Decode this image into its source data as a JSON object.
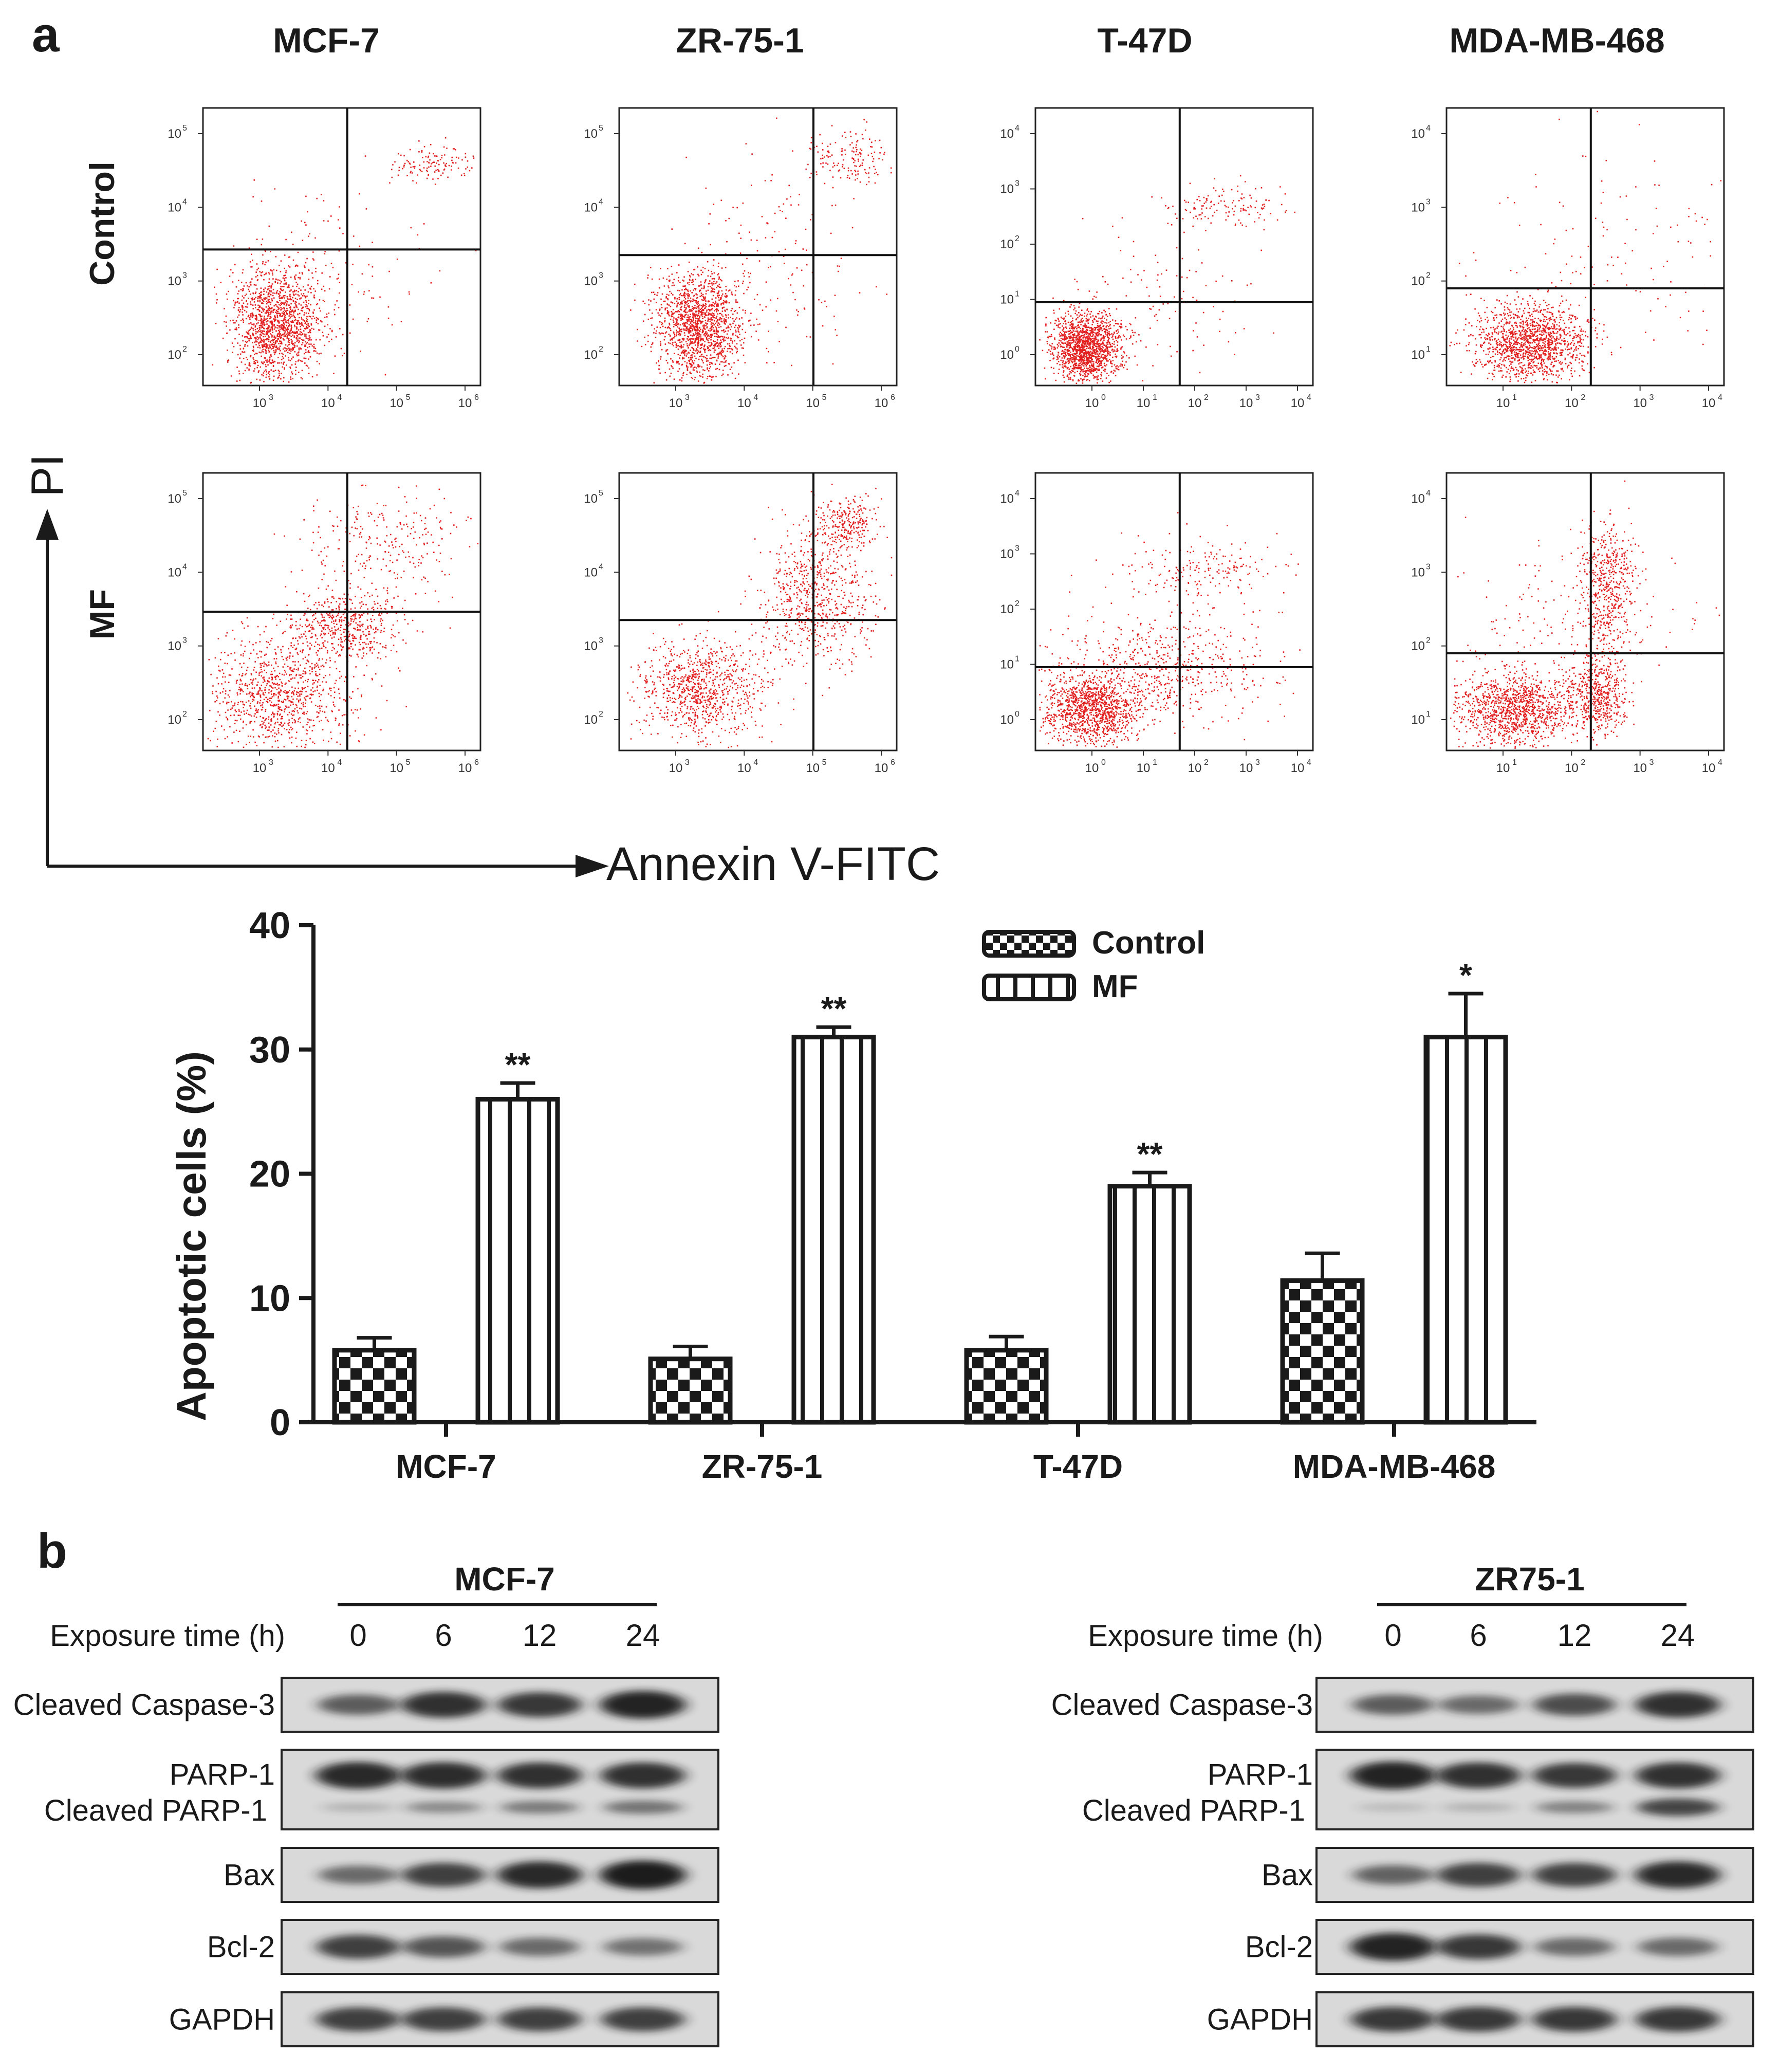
{
  "panel_a": {
    "label": "a",
    "cell_lines": [
      "MCF-7",
      "ZR-75-1",
      "T-47D",
      "MDA-MB-468"
    ],
    "conditions": [
      "Control",
      "MF"
    ],
    "y_axis_label": "PI",
    "x_axis_label": "Annexin V-FITC",
    "scatter_plots": [
      {
        "cell_line": "MCF-7",
        "ticks_x": [
          "10",
          "10",
          "10",
          "10"
        ],
        "tick_exponents_x": [
          "3",
          "4",
          "5",
          "6"
        ],
        "ticks_y": [
          "10",
          "10",
          "10",
          "10"
        ],
        "tick_exponents_y": [
          "2",
          "3",
          "4",
          "5"
        ]
      },
      {
        "cell_line": "ZR-75-1",
        "ticks_x": [
          "10",
          "10",
          "10",
          "10"
        ],
        "tick_exponents_x": [
          "3",
          "4",
          "5",
          "6"
        ],
        "ticks_y": [
          "10",
          "10",
          "10",
          "10"
        ],
        "tick_exponents_y": [
          "2",
          "3",
          "4",
          "5"
        ]
      },
      {
        "cell_line": "T-47D",
        "ticks_x": [
          "10",
          "10",
          "10",
          "10",
          "10"
        ],
        "tick_exponents_x": [
          "0",
          "1",
          "2",
          "3",
          "4"
        ],
        "ticks_y": [
          "10",
          "10",
          "10",
          "10",
          "10"
        ],
        "tick_exponents_y": [
          "0",
          "1",
          "2",
          "3",
          "4"
        ]
      },
      {
        "cell_line": "MDA-MB-468",
        "ticks_x": [
          "10",
          "10",
          "10",
          "10"
        ],
        "tick_exponents_x": [
          "1",
          "2",
          "3",
          "4"
        ],
        "ticks_y": [
          "10",
          "10",
          "10",
          "10"
        ],
        "tick_exponents_y": [
          "1",
          "2",
          "3",
          "4"
        ]
      }
    ]
  },
  "chart_data": {
    "type": "bar",
    "title": "",
    "xlabel": "",
    "ylabel": "Apoptotic cells (%)",
    "ylim": [
      0,
      40
    ],
    "yticks": [
      0,
      10,
      20,
      30,
      40
    ],
    "categories": [
      "MCF-7",
      "ZR-75-1",
      "T-47D",
      "MDA-MB-468"
    ],
    "legend": [
      "Control",
      "MF"
    ],
    "legend_position": "top-right",
    "series": [
      {
        "name": "Control",
        "pattern": "checkerboard",
        "values": [
          5.8,
          5.1,
          5.8,
          11.4
        ],
        "errors": [
          1.0,
          1.0,
          1.1,
          2.2
        ],
        "significance": [
          "",
          "",
          "",
          ""
        ]
      },
      {
        "name": "MF",
        "pattern": "vertical-stripes",
        "values": [
          26.0,
          31.0,
          19.0,
          31.0
        ],
        "errors": [
          1.3,
          0.8,
          1.1,
          3.5
        ],
        "significance": [
          "**",
          "**",
          "**",
          "*"
        ]
      }
    ]
  },
  "panel_b": {
    "label": "b",
    "exposure_label": "Exposure time (h)",
    "times": [
      "0",
      "6",
      "12",
      "24"
    ],
    "blots": [
      {
        "cell_line": "MCF-7",
        "rows": [
          {
            "label": "Cleaved Caspase-3",
            "intensities": [
              0.55,
              0.85,
              0.8,
              0.95
            ]
          },
          {
            "label": "PARP-1",
            "sublabel": "Cleaved PARP-1",
            "intensities": [
              0.9,
              0.88,
              0.85,
              0.85
            ],
            "lower_intensities": [
              0.1,
              0.35,
              0.45,
              0.5
            ]
          },
          {
            "label": "Bax",
            "intensities": [
              0.45,
              0.75,
              0.9,
              1.0
            ]
          },
          {
            "label": "Bcl-2",
            "intensities": [
              0.75,
              0.6,
              0.45,
              0.4
            ]
          },
          {
            "label": "GAPDH",
            "intensities": [
              0.75,
              0.75,
              0.75,
              0.75
            ]
          }
        ]
      },
      {
        "cell_line": "ZR75-1",
        "rows": [
          {
            "label": "Cleaved Caspase-3",
            "intensities": [
              0.55,
              0.45,
              0.65,
              0.85
            ]
          },
          {
            "label": "PARP-1",
            "sublabel": "Cleaved PARP-1",
            "intensities": [
              0.95,
              0.85,
              0.8,
              0.85
            ],
            "lower_intensities": [
              0.05,
              0.1,
              0.4,
              0.8
            ]
          },
          {
            "label": "Bax",
            "intensities": [
              0.5,
              0.75,
              0.75,
              0.9
            ]
          },
          {
            "label": "Bcl-2",
            "intensities": [
              0.95,
              0.8,
              0.45,
              0.45
            ]
          },
          {
            "label": "GAPDH",
            "intensities": [
              0.8,
              0.8,
              0.8,
              0.8
            ]
          }
        ]
      }
    ]
  },
  "colors": {
    "dots": "#e32020",
    "ink": "#1a1a1a",
    "blot_bg": "#d9d9d9",
    "band": "#1c1c1c"
  }
}
